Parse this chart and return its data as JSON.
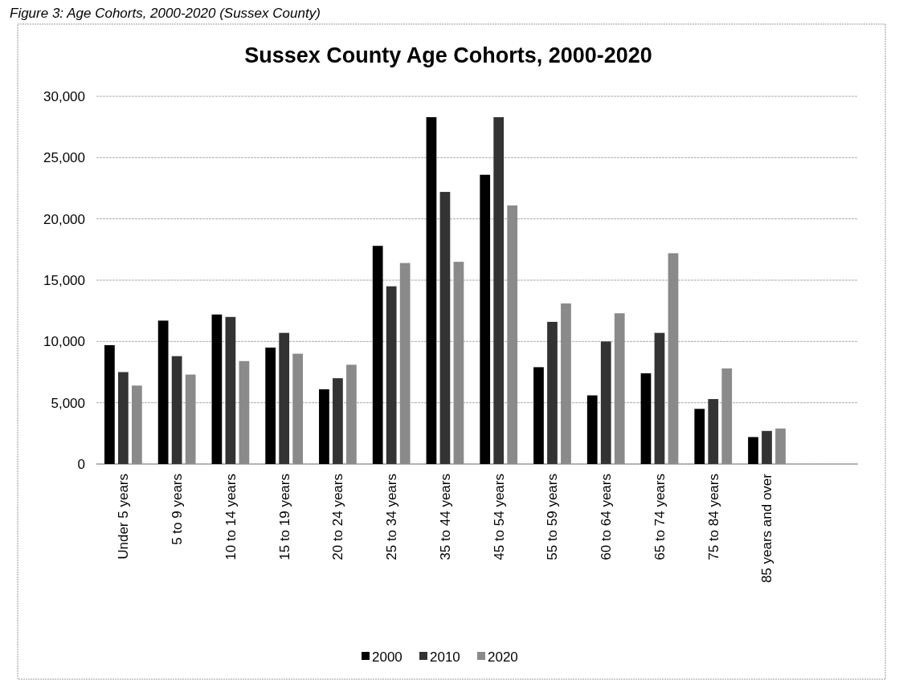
{
  "chart_data": {
    "type": "bar",
    "title": "Sussex County Age Cohorts, 2000-2020",
    "annotations": [
      "Figure 3: Age Cohorts, 2000-2020 (Sussex County)"
    ],
    "categories": [
      "Under 5 years",
      "5 to 9 years",
      "10 to 14 years",
      "15 to 19 years",
      "20 to 24 years",
      "25 to 34 years",
      "35 to 44 years",
      "45 to 54 years",
      "55 to 59 years",
      "60 to 64 years",
      "65 to 74 years",
      "75 to 84 years",
      "85 years and over"
    ],
    "series": [
      {
        "name": "2000",
        "color": "#000000",
        "values": [
          9700,
          11700,
          12200,
          9500,
          6100,
          17800,
          28300,
          23600,
          7900,
          5600,
          7400,
          4500,
          2200
        ]
      },
      {
        "name": "2010",
        "color": "#333333",
        "values": [
          7500,
          8800,
          12000,
          10700,
          7000,
          14500,
          22200,
          28300,
          11600,
          10000,
          10700,
          5300,
          2700
        ]
      },
      {
        "name": "2020",
        "color": "#8a8a8a",
        "values": [
          6400,
          7300,
          8400,
          9000,
          8100,
          16400,
          16500,
          21100,
          13100,
          12300,
          17200,
          7800,
          2900
        ]
      }
    ],
    "ylim": [
      0,
      30000
    ],
    "yticks": [
      {
        "value": 0,
        "label": "0"
      },
      {
        "value": 5000,
        "label": "5,000"
      },
      {
        "value": 10000,
        "label": "10,000"
      },
      {
        "value": 15000,
        "label": "15,000"
      },
      {
        "value": 20000,
        "label": "20,000"
      },
      {
        "value": 25000,
        "label": "25,000"
      },
      {
        "value": 30000,
        "label": "30,000"
      }
    ],
    "grid": "y",
    "legend": "bottom"
  }
}
